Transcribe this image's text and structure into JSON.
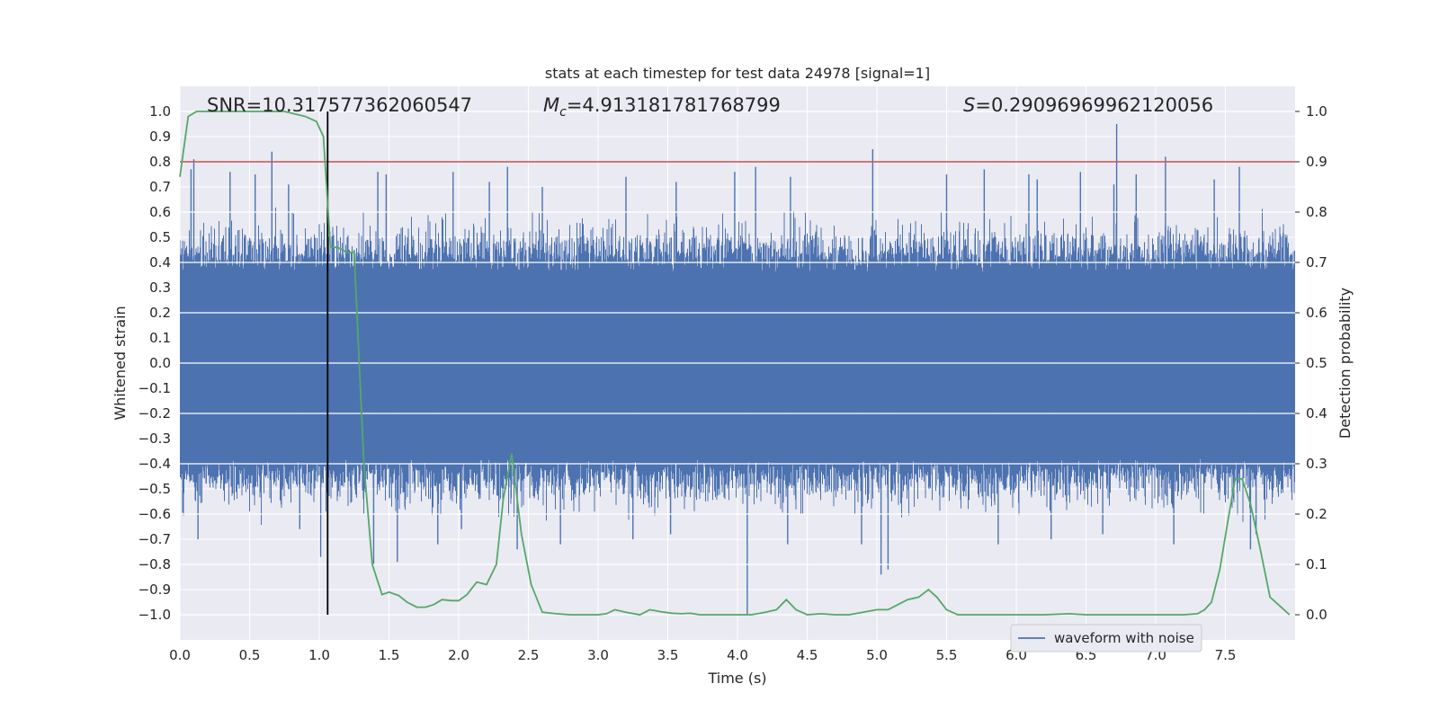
{
  "chart_data": {
    "type": "line",
    "title": "stats at each timestep for test data 24978 [signal=1]",
    "xlabel": "Time (s)",
    "ylabel": "Whitened strain",
    "y2label": "Detection probability",
    "xlim": [
      0.0,
      8.0
    ],
    "ylim": [
      -1.1,
      1.1
    ],
    "y2lim": [
      -0.05,
      1.05
    ],
    "xticks": [
      "0.0",
      "0.5",
      "1.0",
      "1.5",
      "2.0",
      "2.5",
      "3.0",
      "3.5",
      "4.0",
      "4.5",
      "5.0",
      "5.5",
      "6.0",
      "6.5",
      "7.0",
      "7.5"
    ],
    "yticks": [
      "1.0",
      "0.9",
      "0.8",
      "0.7",
      "0.6",
      "0.5",
      "0.4",
      "0.3",
      "0.2",
      "0.1",
      "0.0",
      "-0.1",
      "-0.2",
      "-0.3",
      "-0.4",
      "-0.5",
      "-0.6",
      "-0.7",
      "-0.8",
      "-0.9",
      "-1.0"
    ],
    "y2ticks": [
      "1.0",
      "0.9",
      "0.8",
      "0.7",
      "0.6",
      "0.5",
      "0.4",
      "0.3",
      "0.2",
      "0.1",
      "0.0"
    ],
    "annotations": {
      "snr_label": "SNR=10.317577362060547",
      "mc_name": "M",
      "mc_sub": "c",
      "mc_value": "=4.913181781768799",
      "s_name": "S",
      "s_value": "=0.29096969962120056"
    },
    "legend": {
      "label": "waveform with noise",
      "position": "lower-right"
    },
    "threshold": {
      "value": 0.9,
      "axis": "right",
      "color": "#c44e52"
    },
    "vline": {
      "x": 1.06,
      "ymin": -1.0,
      "ymax": 1.0,
      "color": "#000000"
    },
    "colors": {
      "waveform": "#4c72b0",
      "probability": "#55a868",
      "background": "#eaeaf2",
      "grid": "#ffffff"
    },
    "series": [
      {
        "name": "Detection probability",
        "axis": "right",
        "x": [
          0.0,
          0.06,
          0.12,
          0.25,
          0.5,
          0.75,
          0.9,
          0.98,
          1.03,
          1.08,
          1.13,
          1.2,
          1.25,
          1.32,
          1.38,
          1.45,
          1.5,
          1.57,
          1.63,
          1.7,
          1.76,
          1.82,
          1.88,
          1.95,
          2.0,
          2.06,
          2.13,
          2.2,
          2.27,
          2.32,
          2.38,
          2.45,
          2.52,
          2.6,
          2.7,
          2.8,
          2.9,
          3.0,
          3.06,
          3.12,
          3.2,
          3.3,
          3.37,
          3.45,
          3.53,
          3.6,
          3.66,
          3.73,
          3.8,
          3.9,
          4.0,
          4.1,
          4.2,
          4.28,
          4.35,
          4.42,
          4.5,
          4.6,
          4.7,
          4.8,
          4.9,
          5.0,
          5.08,
          5.15,
          5.22,
          5.3,
          5.37,
          5.43,
          5.5,
          5.58,
          5.66,
          5.75,
          5.85,
          6.0,
          6.2,
          6.38,
          6.5,
          6.7,
          6.85,
          7.0,
          7.2,
          7.3,
          7.35,
          7.4,
          7.46,
          7.52,
          7.57,
          7.62,
          7.68,
          7.75,
          7.82,
          7.9,
          7.96
        ],
        "y": [
          0.87,
          0.99,
          1.0,
          1.0,
          1.0,
          1.0,
          0.99,
          0.98,
          0.95,
          0.73,
          0.73,
          0.72,
          0.72,
          0.3,
          0.1,
          0.04,
          0.045,
          0.038,
          0.025,
          0.015,
          0.015,
          0.02,
          0.03,
          0.028,
          0.028,
          0.04,
          0.065,
          0.06,
          0.1,
          0.23,
          0.32,
          0.16,
          0.06,
          0.005,
          0.002,
          0.0,
          0.0,
          0.0,
          0.002,
          0.01,
          0.005,
          0.0,
          0.01,
          0.006,
          0.003,
          0.002,
          0.003,
          0.0,
          0.0,
          0.0,
          0.0,
          0.0,
          0.005,
          0.01,
          0.03,
          0.01,
          0.0,
          0.002,
          0.0,
          0.0,
          0.005,
          0.01,
          0.01,
          0.02,
          0.03,
          0.035,
          0.05,
          0.035,
          0.01,
          0.0,
          0.0,
          0.0,
          0.0,
          0.0,
          0.0,
          0.002,
          0.0,
          0.0,
          0.0,
          0.0,
          0.0,
          0.002,
          0.01,
          0.025,
          0.09,
          0.19,
          0.27,
          0.27,
          0.22,
          0.13,
          0.035,
          0.015,
          0.0
        ]
      },
      {
        "name": "waveform with noise",
        "axis": "left",
        "spikes": [
          {
            "x": 0.66,
            "y": 0.84
          },
          {
            "x": 0.08,
            "y": 0.77
          },
          {
            "x": 0.1,
            "y": 0.81
          },
          {
            "x": 0.36,
            "y": 0.76
          },
          {
            "x": 0.54,
            "y": 0.75
          },
          {
            "x": 0.78,
            "y": 0.71
          },
          {
            "x": 1.42,
            "y": 0.76
          },
          {
            "x": 1.48,
            "y": 0.75
          },
          {
            "x": 1.96,
            "y": 0.76
          },
          {
            "x": 2.22,
            "y": 0.72
          },
          {
            "x": 2.35,
            "y": 0.78
          },
          {
            "x": 2.6,
            "y": 0.7
          },
          {
            "x": 3.2,
            "y": 0.74
          },
          {
            "x": 3.56,
            "y": 0.72
          },
          {
            "x": 3.98,
            "y": 0.76
          },
          {
            "x": 4.13,
            "y": 0.78
          },
          {
            "x": 4.38,
            "y": 0.74
          },
          {
            "x": 4.97,
            "y": 0.85
          },
          {
            "x": 5.5,
            "y": 0.75
          },
          {
            "x": 5.77,
            "y": 0.77
          },
          {
            "x": 6.09,
            "y": 0.75
          },
          {
            "x": 6.15,
            "y": 0.73
          },
          {
            "x": 6.46,
            "y": 0.76
          },
          {
            "x": 6.7,
            "y": 0.71
          },
          {
            "x": 6.72,
            "y": 0.95
          },
          {
            "x": 6.86,
            "y": 0.75
          },
          {
            "x": 7.07,
            "y": 0.82
          },
          {
            "x": 7.42,
            "y": 0.73
          },
          {
            "x": 7.6,
            "y": 0.78
          },
          {
            "x": 0.13,
            "y": -0.7
          },
          {
            "x": 0.86,
            "y": -0.66
          },
          {
            "x": 1.01,
            "y": -0.77
          },
          {
            "x": 1.39,
            "y": -0.8
          },
          {
            "x": 1.56,
            "y": -0.79
          },
          {
            "x": 1.85,
            "y": -0.72
          },
          {
            "x": 2.02,
            "y": -0.66
          },
          {
            "x": 2.42,
            "y": -0.74
          },
          {
            "x": 2.73,
            "y": -0.72
          },
          {
            "x": 3.25,
            "y": -0.7
          },
          {
            "x": 3.52,
            "y": -0.68
          },
          {
            "x": 4.07,
            "y": -1.0
          },
          {
            "x": 4.36,
            "y": -0.72
          },
          {
            "x": 4.89,
            "y": -0.72
          },
          {
            "x": 5.03,
            "y": -0.84
          },
          {
            "x": 5.08,
            "y": -0.82
          },
          {
            "x": 5.87,
            "y": -0.72
          },
          {
            "x": 6.25,
            "y": -0.7
          },
          {
            "x": 6.62,
            "y": -0.68
          },
          {
            "x": 7.13,
            "y": -0.72
          },
          {
            "x": 7.68,
            "y": -0.74
          },
          {
            "x": 7.72,
            "y": -0.68
          }
        ]
      }
    ]
  }
}
